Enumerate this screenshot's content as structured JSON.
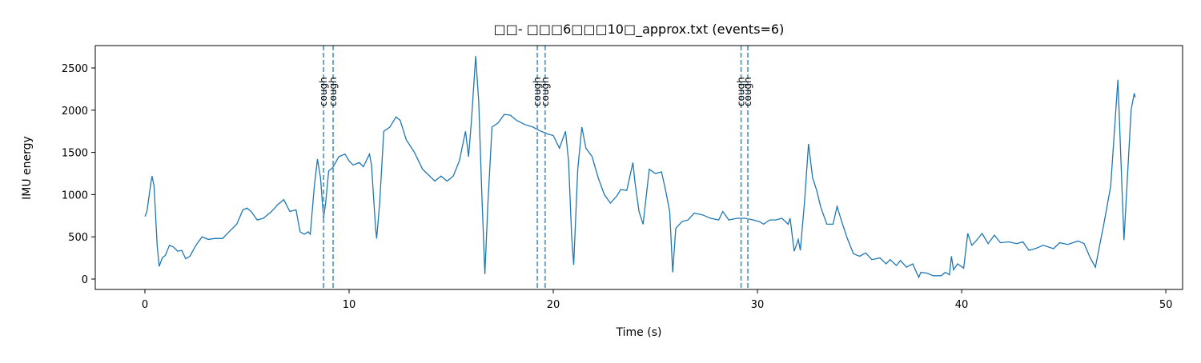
{
  "chart_data": {
    "type": "line",
    "title": "□□- □□□6□□□10□_approx.txt  (events=6)",
    "xlabel": "Time (s)",
    "ylabel": "IMU energy",
    "color": "#1f77b4",
    "x": [
      0.0,
      0.1,
      0.3,
      0.35,
      0.45,
      0.6,
      0.7,
      0.85,
      1.0,
      1.2,
      1.4,
      1.6,
      1.8,
      2.0,
      2.2,
      2.5,
      2.8,
      3.1,
      3.4,
      3.8,
      4.2,
      4.5,
      4.8,
      5.0,
      5.2,
      5.5,
      5.8,
      6.2,
      6.5,
      6.8,
      7.1,
      7.4,
      7.6,
      7.8,
      8.0,
      8.1,
      8.3,
      8.45,
      8.6,
      8.75,
      8.85,
      9.0,
      9.2,
      9.5,
      9.8,
      10.0,
      10.2,
      10.5,
      10.7,
      11.0,
      11.1,
      11.3,
      11.35,
      11.5,
      11.7,
      12.0,
      12.3,
      12.5,
      12.8,
      13.2,
      13.6,
      13.9,
      14.2,
      14.5,
      14.8,
      15.1,
      15.4,
      15.7,
      15.85,
      16.0,
      16.2,
      16.35,
      16.5,
      16.65,
      16.8,
      17.0,
      17.3,
      17.6,
      17.9,
      18.2,
      18.6,
      19.0,
      19.3,
      19.7,
      20.0,
      20.3,
      20.6,
      20.75,
      20.9,
      21.0,
      21.2,
      21.4,
      21.6,
      21.9,
      22.2,
      22.5,
      22.8,
      23.1,
      23.3,
      23.6,
      23.9,
      24.0,
      24.2,
      24.4,
      24.7,
      25.0,
      25.3,
      25.5,
      25.7,
      25.85,
      26.0,
      26.3,
      26.6,
      26.9,
      27.3,
      27.7,
      28.1,
      28.3,
      28.6,
      29.0,
      29.4,
      29.8,
      30.1,
      30.3,
      30.6,
      30.9,
      31.2,
      31.5,
      31.6,
      31.8,
      32.0,
      32.1,
      32.3,
      32.5,
      32.7,
      32.9,
      33.1,
      33.4,
      33.7,
      33.9,
      34.1,
      34.4,
      34.7,
      35.0,
      35.3,
      35.6,
      36.0,
      36.3,
      36.5,
      36.8,
      37.0,
      37.3,
      37.6,
      37.9,
      38.0,
      38.3,
      38.6,
      39.0,
      39.2,
      39.4,
      39.5,
      39.6,
      39.8,
      40.1,
      40.3,
      40.5,
      40.7,
      41.0,
      41.3,
      41.6,
      41.9,
      42.3,
      42.7,
      43.0,
      43.3,
      43.6,
      44.0,
      44.5,
      44.8,
      45.2,
      45.7,
      46.0,
      46.3,
      46.55,
      47.0,
      47.3,
      47.65,
      47.95,
      48.3,
      48.45,
      48.5
    ],
    "values": [
      740,
      800,
      1150,
      1220,
      1100,
      400,
      150,
      250,
      280,
      400,
      380,
      330,
      340,
      240,
      270,
      400,
      500,
      470,
      480,
      480,
      580,
      650,
      820,
      840,
      800,
      700,
      720,
      800,
      880,
      940,
      800,
      820,
      560,
      530,
      560,
      530,
      1100,
      1420,
      1200,
      720,
      900,
      1280,
      1320,
      1450,
      1480,
      1400,
      1350,
      1380,
      1330,
      1480,
      1350,
      600,
      480,
      900,
      1750,
      1800,
      1920,
      1880,
      1650,
      1500,
      1300,
      1230,
      1160,
      1220,
      1160,
      1220,
      1400,
      1750,
      1450,
      1900,
      2640,
      2100,
      1000,
      60,
      900,
      1800,
      1850,
      1950,
      1940,
      1880,
      1830,
      1800,
      1760,
      1720,
      1700,
      1550,
      1750,
      1400,
      500,
      170,
      1300,
      1800,
      1550,
      1450,
      1200,
      1000,
      900,
      980,
      1060,
      1050,
      1380,
      1150,
      800,
      650,
      1300,
      1250,
      1270,
      1050,
      800,
      80,
      600,
      680,
      700,
      780,
      760,
      720,
      700,
      800,
      700,
      720,
      720,
      700,
      680,
      650,
      700,
      700,
      720,
      650,
      720,
      330,
      470,
      340,
      900,
      1600,
      1200,
      1050,
      850,
      650,
      650,
      860,
      700,
      480,
      300,
      270,
      310,
      230,
      250,
      180,
      230,
      160,
      220,
      140,
      180,
      20,
      80,
      70,
      40,
      40,
      80,
      50,
      270,
      110,
      180,
      130,
      540,
      400,
      450,
      540,
      420,
      520,
      430,
      440,
      420,
      440,
      340,
      360,
      400,
      360,
      430,
      410,
      450,
      420,
      250,
      140,
      700,
      1100,
      2360,
      460,
      2000,
      2200,
      2150
    ],
    "events": [
      {
        "x": 8.75,
        "label": "cough"
      },
      {
        "x": 9.22,
        "label": "cough"
      },
      {
        "x": 19.22,
        "label": "cough"
      },
      {
        "x": 19.6,
        "label": "cough"
      },
      {
        "x": 29.2,
        "label": "cough"
      },
      {
        "x": 29.53,
        "label": "cough"
      }
    ],
    "event_color": "#6fa3c5",
    "xlim": [
      -2.43,
      50.82
    ],
    "ylim": [
      -123,
      2765
    ],
    "xticks": [
      0,
      10,
      20,
      30,
      40,
      50
    ],
    "yticks": [
      0,
      500,
      1000,
      1500,
      2000,
      2500
    ]
  }
}
